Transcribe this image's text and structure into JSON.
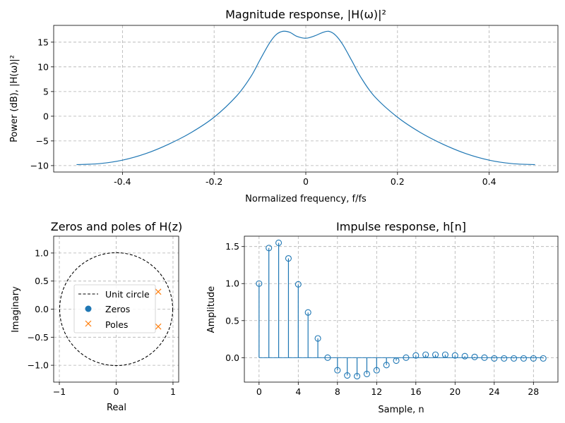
{
  "chart_data": [
    {
      "type": "line",
      "title": "Magnitude response, |H(ω)|²",
      "xlabel": "Normalized frequency, f/fs",
      "ylabel": "Power (dB), |H(ω)|²",
      "xlim": [
        -0.55,
        0.55
      ],
      "ylim": [
        -11.3,
        18.4
      ],
      "xticks": [
        -0.4,
        -0.2,
        0,
        0.2,
        0.4
      ],
      "xtick_labels": [
        "-0.4",
        "-0.2",
        "0",
        "0.2",
        "0.4"
      ],
      "yticks": [
        -10,
        -5,
        0,
        5,
        10,
        15
      ],
      "ytick_labels": [
        "−10",
        "−5",
        "0",
        "5",
        "10",
        "15"
      ],
      "grid": true,
      "series": [
        {
          "name": "|H(ω)|²",
          "color": "#1f77b4",
          "x": [
            -0.5,
            -0.45,
            -0.4,
            -0.35,
            -0.3,
            -0.25,
            -0.2,
            -0.15,
            -0.12,
            -0.1,
            -0.08,
            -0.065,
            -0.05,
            -0.035,
            -0.02,
            0,
            0.02,
            0.035,
            0.05,
            0.065,
            0.08,
            0.1,
            0.12,
            0.15,
            0.2,
            0.25,
            0.3,
            0.35,
            0.4,
            0.45,
            0.5
          ],
          "y": [
            -9.8,
            -9.6,
            -8.9,
            -7.6,
            -5.7,
            -3.3,
            -0.2,
            4.2,
            8.0,
            11.4,
            14.7,
            16.5,
            17.2,
            17.0,
            16.2,
            15.8,
            16.3,
            16.9,
            17.2,
            16.4,
            14.6,
            11.3,
            7.9,
            4.0,
            -0.2,
            -3.3,
            -5.7,
            -7.6,
            -8.9,
            -9.6,
            -9.8
          ]
        }
      ]
    },
    {
      "type": "scatter",
      "title": "Zeros and poles of H(z)",
      "xlabel": "Real",
      "ylabel": "Imaginary",
      "xlim": [
        -1.1,
        1.1
      ],
      "ylim": [
        -1.3,
        1.3
      ],
      "xticks": [
        -1,
        0,
        1
      ],
      "xtick_labels": [
        "−1",
        "0",
        "1"
      ],
      "yticks": [
        -1.0,
        -0.5,
        0.0,
        0.5,
        1.0
      ],
      "ytick_labels": [
        "−1.0",
        "−0.5",
        "0.0",
        "0.5",
        "1.0"
      ],
      "grid": true,
      "legend": {
        "placement": "center",
        "entries": [
          {
            "label": "Unit circle",
            "style": "dashed-line",
            "color": "#000000"
          },
          {
            "label": "Zeros",
            "style": "dot",
            "color": "#1f77b4"
          },
          {
            "label": "Poles",
            "style": "x",
            "color": "#ff7f0e"
          }
        ]
      },
      "unit_circle_radius": 1,
      "zeros": [],
      "poles": [
        {
          "re": 0.74,
          "im": 0.31
        },
        {
          "re": 0.74,
          "im": -0.31
        }
      ]
    },
    {
      "type": "stem",
      "title": "Impulse response, h[n]",
      "xlabel": "Sample, n",
      "ylabel": "Amplitude",
      "xlim": [
        -1.5,
        30.5
      ],
      "ylim": [
        -0.33,
        1.64
      ],
      "xticks": [
        0,
        4,
        8,
        12,
        16,
        20,
        24,
        28
      ],
      "xtick_labels": [
        "0",
        "4",
        "8",
        "12",
        "16",
        "20",
        "24",
        "28"
      ],
      "yticks": [
        0.0,
        0.5,
        1.0,
        1.5
      ],
      "ytick_labels": [
        "0.0",
        "0.5",
        "1.0",
        "1.5"
      ],
      "grid": true,
      "color": "#1f77b4",
      "n": [
        0,
        1,
        2,
        3,
        4,
        5,
        6,
        7,
        8,
        9,
        10,
        11,
        12,
        13,
        14,
        15,
        16,
        17,
        18,
        19,
        20,
        21,
        22,
        23,
        24,
        25,
        26,
        27,
        28,
        29
      ],
      "values": [
        1.0,
        1.48,
        1.55,
        1.34,
        0.99,
        0.61,
        0.26,
        0.0,
        -0.17,
        -0.24,
        -0.25,
        -0.22,
        -0.17,
        -0.1,
        -0.04,
        0.0,
        0.03,
        0.04,
        0.04,
        0.04,
        0.03,
        0.02,
        0.01,
        0.0,
        -0.01,
        -0.01,
        -0.01,
        -0.01,
        -0.01,
        -0.01
      ]
    }
  ]
}
